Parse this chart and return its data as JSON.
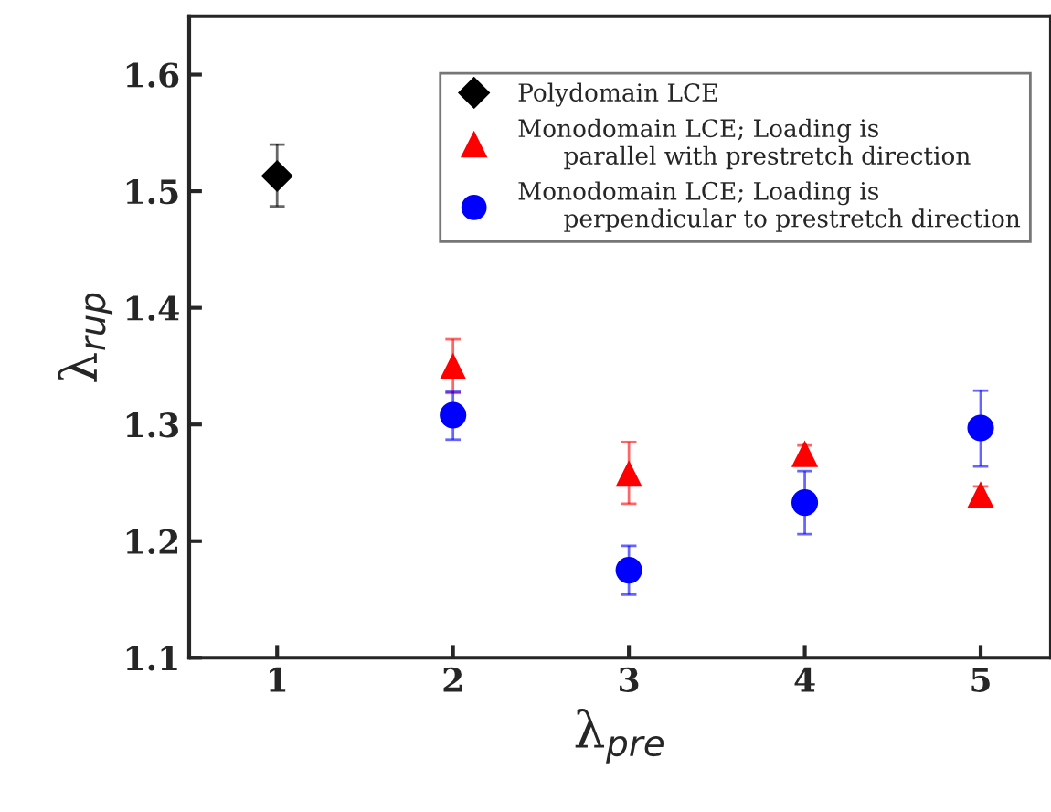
{
  "chart_data": {
    "type": "scatter",
    "xlabel": "λ$_{pre}$",
    "ylabel": "λ$_{rup}$",
    "series": [
      {
        "name": "Polydomain LCE",
        "color": "#000000",
        "marker": "diamond",
        "x": [
          1
        ],
        "values": [
          1.513
        ],
        "errors": [
          [
            1.487,
            1.54
          ]
        ]
      },
      {
        "name": "Monodomain LCE; Loading is\n      parallel with prestretch direction",
        "color": "#ff0000",
        "marker": "triangle",
        "x": [
          2,
          3,
          4,
          5
        ],
        "values": [
          1.35,
          1.258,
          1.275,
          1.24
        ],
        "errors": [
          [
            1.327,
            1.373
          ],
          [
            1.232,
            1.285
          ],
          [
            1.268,
            1.282
          ],
          [
            1.232,
            1.247
          ]
        ]
      },
      {
        "name": "Monodomain LCE; Loading is\n      perpendicular to prestretch direction",
        "color": "#0000ff",
        "marker": "circle",
        "x": [
          2,
          3,
          4,
          5
        ],
        "values": [
          1.308,
          1.175,
          1.233,
          1.297
        ],
        "errors": [
          [
            1.287,
            1.328
          ],
          [
            1.154,
            1.196
          ],
          [
            1.206,
            1.26
          ],
          [
            1.264,
            1.329
          ]
        ]
      }
    ],
    "xlim": [
      0.5,
      5.4
    ],
    "xticks": [
      1,
      2,
      3,
      4,
      5
    ],
    "ylim": [
      1.1,
      1.65
    ],
    "yticks": [
      1.1,
      1.2,
      1.3,
      1.4,
      1.5,
      1.6
    ],
    "grid": false,
    "legend": "top right"
  }
}
